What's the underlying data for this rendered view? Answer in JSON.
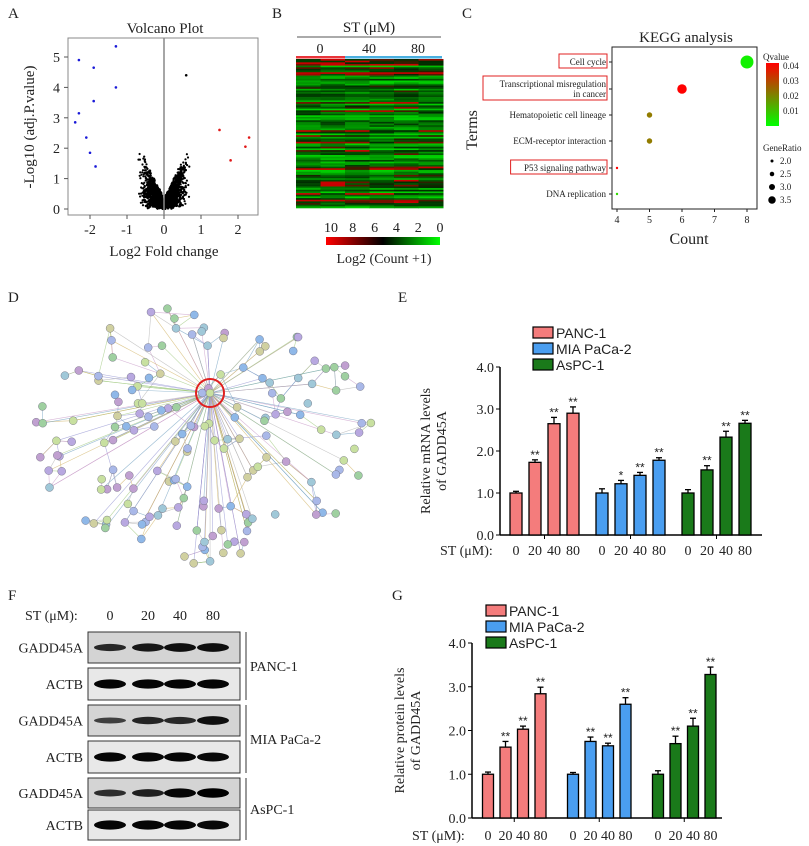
{
  "panels": {
    "A": "A",
    "B": "B",
    "C": "C",
    "D": "D",
    "E": "E",
    "F": "F",
    "G": "G"
  },
  "chart_data": [
    {
      "id": "volcano",
      "type": "scatter",
      "title": "Volcano Plot",
      "xlabel": "Log2 Fold change",
      "ylabel": "-Log10 (adj.P.value)",
      "xlim": [
        -2.6,
        2.6
      ],
      "ylim": [
        0,
        5.5
      ],
      "xticks": [
        "-2",
        "-1",
        "0",
        "1",
        "2"
      ],
      "xtick_values": [
        -2,
        -1,
        0,
        1,
        2
      ],
      "yticks": [
        "0",
        "1",
        "2",
        "3",
        "4",
        "5"
      ],
      "ytick_values": [
        0,
        1,
        2,
        3,
        4,
        5
      ],
      "fold_change_threshold": 1,
      "colors": {
        "down": "#1a1ad8",
        "up": "#e01818",
        "ns": "#000000",
        "vline": "#888888"
      },
      "highlight_points": [
        [
          -1.3,
          5.35
        ],
        [
          -2.3,
          4.9
        ],
        [
          -1.9,
          4.65
        ],
        [
          -1.3,
          4.0
        ],
        [
          -1.9,
          3.55
        ],
        [
          -2.3,
          3.15
        ],
        [
          -2.4,
          2.85
        ],
        [
          -2.1,
          2.35
        ],
        [
          -2.0,
          1.85
        ],
        [
          -1.85,
          1.4
        ],
        [
          0.6,
          4.4
        ],
        [
          2.3,
          2.35
        ],
        [
          2.2,
          2.05
        ],
        [
          1.5,
          2.6
        ],
        [
          1.8,
          1.6
        ]
      ]
    },
    {
      "id": "heatmap",
      "type": "heatmap",
      "header": "ST (μM)",
      "columns": [
        "0",
        "40",
        "80"
      ],
      "column_colors": [
        "#e8343a",
        "#4ab0e0",
        "#4ab0e0"
      ],
      "colorbar_ticks": [
        "10",
        "8",
        "6",
        "4",
        "2",
        "0"
      ],
      "colorbar_label": "Log2 (Count +1)",
      "colorbar_colors": [
        "#ff0000",
        "#000000",
        "#00ff00"
      ],
      "rows": 90
    },
    {
      "id": "kegg",
      "type": "scatter",
      "title": "KEGG analysis",
      "xlabel": "Count",
      "ylabel": "Terms",
      "xlim": [
        3.8,
        8.3
      ],
      "xticks": [
        "4",
        "5",
        "6",
        "7",
        "8"
      ],
      "xtick_values": [
        4,
        5,
        6,
        7,
        8
      ],
      "terms": [
        {
          "label": "Cell cycle",
          "count": 8,
          "qvalue": 0.003,
          "gene_ratio": 3.7,
          "boxed": true
        },
        {
          "label": "Transcriptional misregulation",
          "label2": "in cancer",
          "count": 6,
          "qvalue": 0.042,
          "gene_ratio": 3.2,
          "boxed": true
        },
        {
          "label": "Hematopoietic cell lineage",
          "count": 5,
          "qvalue": 0.024,
          "gene_ratio": 2.6,
          "boxed": false
        },
        {
          "label": "ECM-receptor interaction",
          "count": 5,
          "qvalue": 0.024,
          "gene_ratio": 2.6,
          "boxed": false
        },
        {
          "label": "P53 signaling pathway",
          "count": 4,
          "qvalue": 0.042,
          "gene_ratio": 2.0,
          "boxed": true
        },
        {
          "label": "DNA replication",
          "count": 4,
          "qvalue": 0.008,
          "gene_ratio": 2.0,
          "boxed": false
        }
      ],
      "qvalue_legend": {
        "title": "Qvalue",
        "ticks": [
          "0.04",
          "0.03",
          "0.02",
          "0.01"
        ],
        "colors": [
          "#ff0000",
          "#00ff00"
        ]
      },
      "generatio_legend": {
        "title": "GeneRatio",
        "ticks": [
          "2.0",
          "2.5",
          "3.0",
          "3.5"
        ],
        "values": [
          2.0,
          2.5,
          3.0,
          3.5
        ]
      }
    },
    {
      "id": "mrna",
      "type": "bar",
      "ylabel": "Relative mRNA levels",
      "ylabel2": "of GADD45A",
      "ylim": [
        0,
        4
      ],
      "yticks": [
        "0.0",
        "1.0",
        "2.0",
        "3.0",
        "4.0"
      ],
      "xprefix": "ST (μM):",
      "categories": [
        "0",
        "20",
        "40",
        "80"
      ],
      "series": [
        {
          "name": "PANC-1",
          "color": "#f47c7c",
          "values": [
            1.0,
            1.73,
            2.65,
            2.9
          ],
          "errors": [
            0.04,
            0.06,
            0.15,
            0.15
          ],
          "sig": [
            "",
            "**",
            "**",
            "**"
          ]
        },
        {
          "name": "MIA PaCa-2",
          "color": "#4a9ef0",
          "values": [
            1.0,
            1.22,
            1.42,
            1.78
          ],
          "errors": [
            0.1,
            0.08,
            0.07,
            0.06
          ],
          "sig": [
            "",
            "*",
            "**",
            "**"
          ]
        },
        {
          "name": "AsPC-1",
          "color": "#1a7a1a",
          "values": [
            1.0,
            1.55,
            2.33,
            2.66
          ],
          "errors": [
            0.08,
            0.1,
            0.14,
            0.07
          ],
          "sig": [
            "",
            "**",
            "**",
            "**"
          ]
        }
      ]
    },
    {
      "id": "protein",
      "type": "bar",
      "ylabel": "Relative protein levels",
      "ylabel2": "of GADD45A",
      "ylim": [
        0,
        4
      ],
      "yticks": [
        "0.0",
        "1.0",
        "2.0",
        "3.0",
        "4.0"
      ],
      "xprefix": "ST (μM):",
      "categories": [
        "0",
        "20",
        "40",
        "80"
      ],
      "series": [
        {
          "name": "PANC-1",
          "color": "#f47c7c",
          "values": [
            1.0,
            1.62,
            2.03,
            2.84
          ],
          "errors": [
            0.05,
            0.13,
            0.07,
            0.15
          ],
          "sig": [
            "",
            "**",
            "**",
            "**"
          ]
        },
        {
          "name": "MIA PaCa-2",
          "color": "#4a9ef0",
          "values": [
            1.0,
            1.75,
            1.65,
            2.6
          ],
          "errors": [
            0.04,
            0.1,
            0.06,
            0.15
          ],
          "sig": [
            "",
            "**",
            "**",
            "**"
          ]
        },
        {
          "name": "AsPC-1",
          "color": "#1a7a1a",
          "values": [
            1.0,
            1.7,
            2.1,
            3.28
          ],
          "errors": [
            0.08,
            0.17,
            0.18,
            0.17
          ],
          "sig": [
            "",
            "**",
            "**",
            "**"
          ]
        }
      ]
    }
  ],
  "network": {
    "highlight_color": "#e02020"
  },
  "blot": {
    "prefix": "ST (μM):",
    "lanes": [
      "0",
      "20",
      "40",
      "80"
    ],
    "groups": [
      {
        "cell": "PANC-1",
        "rows": [
          {
            "label": "GADD45A",
            "intensity": [
              0.55,
              0.75,
              0.85,
              0.85
            ]
          },
          {
            "label": "ACTB",
            "intensity": [
              0.95,
              0.95,
              0.95,
              0.95
            ]
          }
        ]
      },
      {
        "cell": "MIA PaCa-2",
        "rows": [
          {
            "label": "GADD45A",
            "intensity": [
              0.3,
              0.6,
              0.55,
              0.85
            ]
          },
          {
            "label": "ACTB",
            "intensity": [
              0.95,
              0.95,
              0.95,
              0.9
            ]
          }
        ]
      },
      {
        "cell": "AsPC-1",
        "rows": [
          {
            "label": "GADD45A",
            "intensity": [
              0.5,
              0.65,
              0.95,
              1.0
            ]
          },
          {
            "label": "ACTB",
            "intensity": [
              0.95,
              0.95,
              0.95,
              0.9
            ]
          }
        ]
      }
    ]
  }
}
